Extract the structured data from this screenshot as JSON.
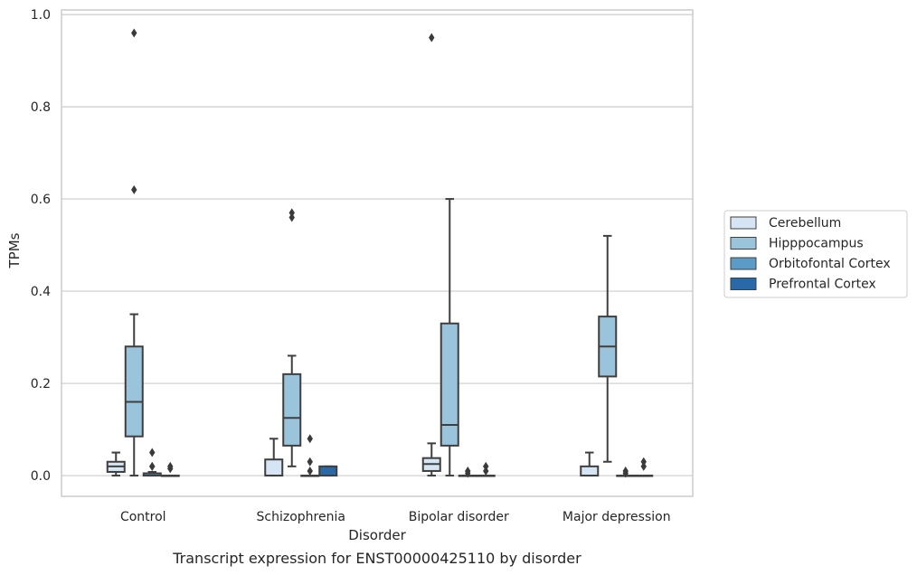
{
  "chart_data": {
    "type": "box",
    "caption": "Transcript expression for ENST00000425110 by disorder",
    "xlabel": "Disorder",
    "ylabel": "TPMs",
    "ylim": [
      -0.045,
      1.01
    ],
    "yticks": [
      0.0,
      0.2,
      0.4,
      0.6,
      0.8,
      1.0
    ],
    "ytick_labels": [
      "0.0",
      "0.2",
      "0.4",
      "0.6",
      "0.8",
      "1.0"
    ],
    "grid": true,
    "legend_position": "right",
    "categories": [
      "Control",
      "Schizophrenia",
      "Bipolar disorder",
      "Major depression"
    ],
    "series": [
      {
        "name": "Cerebellum",
        "color": "#d5e5f4",
        "boxes": [
          {
            "q1": 0.008,
            "median": 0.02,
            "q3": 0.03,
            "whislo": 0.0,
            "whishi": 0.05,
            "fliers": []
          },
          {
            "q1": 0.0,
            "median": 0.0,
            "q3": 0.035,
            "whislo": 0.0,
            "whishi": 0.08,
            "fliers": []
          },
          {
            "q1": 0.01,
            "median": 0.025,
            "q3": 0.038,
            "whislo": 0.0,
            "whishi": 0.07,
            "fliers": [
              0.95
            ]
          },
          {
            "q1": 0.0,
            "median": 0.0,
            "q3": 0.02,
            "whislo": 0.0,
            "whishi": 0.05,
            "fliers": []
          }
        ]
      },
      {
        "name": "Hipppocampus",
        "color": "#9ac4dc",
        "boxes": [
          {
            "q1": 0.085,
            "median": 0.16,
            "q3": 0.28,
            "whislo": 0.0,
            "whishi": 0.35,
            "fliers": [
              0.62,
              0.96
            ]
          },
          {
            "q1": 0.065,
            "median": 0.125,
            "q3": 0.22,
            "whislo": 0.02,
            "whishi": 0.26,
            "fliers": [
              0.56,
              0.57
            ]
          },
          {
            "q1": 0.065,
            "median": 0.11,
            "q3": 0.33,
            "whislo": 0.0,
            "whishi": 0.6,
            "fliers": []
          },
          {
            "q1": 0.215,
            "median": 0.28,
            "q3": 0.345,
            "whislo": 0.03,
            "whishi": 0.52,
            "fliers": []
          }
        ]
      },
      {
        "name": "Orbitofontal Cortex",
        "color": "#5a9bc8",
        "boxes": [
          {
            "q1": 0.0,
            "median": 0.0,
            "q3": 0.005,
            "whislo": 0.0,
            "whishi": 0.008,
            "fliers": [
              0.02,
              0.05,
              0.02
            ]
          },
          {
            "q1": 0.0,
            "median": 0.0,
            "q3": 0.0,
            "whislo": 0.0,
            "whishi": 0.0,
            "fliers": [
              0.01,
              0.03,
              0.08
            ]
          },
          {
            "q1": 0.0,
            "median": 0.0,
            "q3": 0.0,
            "whislo": 0.0,
            "whishi": 0.0,
            "fliers": [
              0.01,
              0.005
            ]
          },
          {
            "q1": 0.0,
            "median": 0.0,
            "q3": 0.0,
            "whislo": 0.0,
            "whishi": 0.0,
            "fliers": [
              0.01,
              0.005
            ]
          }
        ]
      },
      {
        "name": "Prefrontal Cortex",
        "color": "#2a69a8",
        "boxes": [
          {
            "q1": 0.0,
            "median": 0.0,
            "q3": 0.0,
            "whislo": 0.0,
            "whishi": 0.0,
            "fliers": [
              0.02,
              0.015
            ]
          },
          {
            "q1": 0.0,
            "median": 0.0,
            "q3": 0.02,
            "whislo": 0.0,
            "whishi": 0.02,
            "fliers": []
          },
          {
            "q1": 0.0,
            "median": 0.0,
            "q3": 0.0,
            "whislo": 0.0,
            "whishi": 0.0,
            "fliers": [
              0.02,
              0.01
            ]
          },
          {
            "q1": 0.0,
            "median": 0.0,
            "q3": 0.0,
            "whislo": 0.0,
            "whishi": 0.0,
            "fliers": [
              0.03,
              0.02
            ]
          }
        ]
      }
    ]
  }
}
